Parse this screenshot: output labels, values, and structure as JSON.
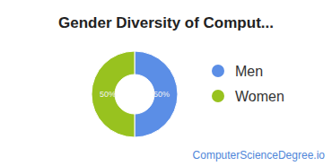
{
  "chart_data": {
    "type": "pie",
    "title": "Gender Diversity of Comput...",
    "categories": [
      "Men",
      "Women"
    ],
    "values": [
      50,
      50
    ],
    "value_labels": [
      "50%",
      "50%"
    ],
    "colors": [
      "#5b8ee6",
      "#98c21f"
    ],
    "legend": "right",
    "data_labels": true,
    "footer": "ComputerScienceDegree.io"
  }
}
